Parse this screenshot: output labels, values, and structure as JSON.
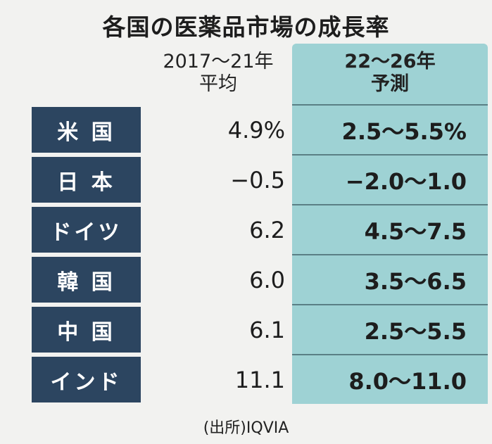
{
  "header": {
    "title": "各国の医薬品市場の成長率"
  },
  "table": {
    "columns": [
      [
        "2017〜21年",
        "平均"
      ],
      [
        "22〜26年",
        "予測"
      ]
    ],
    "rows": [
      [
        "米 国",
        "4.9%",
        "2.5〜5.5%"
      ],
      [
        "日 本",
        "−0.5",
        "−2.0〜1.0"
      ],
      [
        "ドイツ",
        "6.2",
        "4.5〜7.5"
      ],
      [
        "韓 国",
        "6.0",
        "3.5〜6.5"
      ],
      [
        "中 国",
        "6.1",
        "2.5〜5.5"
      ],
      [
        "インド",
        "11.1",
        "8.0〜11.0"
      ]
    ]
  },
  "source": "(出所)IQVIA"
}
